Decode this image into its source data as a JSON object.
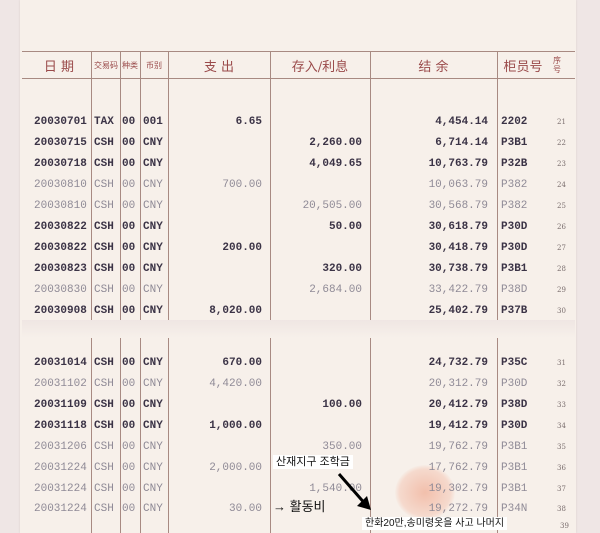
{
  "headers": {
    "date": "日 期",
    "code": "交易码",
    "type": "种类",
    "currency": "币别",
    "debit": "支 出",
    "credit": "存入/利息",
    "balance": "结 余",
    "teller": "柜员号",
    "seq": "序号"
  },
  "rows": [
    {
      "date": "20030701",
      "code": "TAX",
      "type": "00",
      "cur": "001",
      "debit": "6.65",
      "credit": "",
      "balance": "4,454.14",
      "teller": "2202",
      "seq": "21",
      "faded": false
    },
    {
      "date": "20030715",
      "code": "CSH",
      "type": "00",
      "cur": "CNY",
      "debit": "",
      "credit": "2,260.00",
      "balance": "6,714.14",
      "teller": "P3B1",
      "seq": "22",
      "faded": false
    },
    {
      "date": "20030718",
      "code": "CSH",
      "type": "00",
      "cur": "CNY",
      "debit": "",
      "credit": "4,049.65",
      "balance": "10,763.79",
      "teller": "P32B",
      "seq": "23",
      "faded": false
    },
    {
      "date": "20030810",
      "code": "CSH",
      "type": "00",
      "cur": "CNY",
      "debit": "700.00",
      "credit": "",
      "balance": "10,063.79",
      "teller": "P382",
      "seq": "24",
      "faded": true
    },
    {
      "date": "20030810",
      "code": "CSH",
      "type": "00",
      "cur": "CNY",
      "debit": "",
      "credit": "20,505.00",
      "balance": "30,568.79",
      "teller": "P382",
      "seq": "25",
      "faded": true
    },
    {
      "date": "20030822",
      "code": "CSH",
      "type": "00",
      "cur": "CNY",
      "debit": "",
      "credit": "50.00",
      "balance": "30,618.79",
      "teller": "P30D",
      "seq": "26",
      "faded": false
    },
    {
      "date": "20030822",
      "code": "CSH",
      "type": "00",
      "cur": "CNY",
      "debit": "200.00",
      "credit": "",
      "balance": "30,418.79",
      "teller": "P30D",
      "seq": "27",
      "faded": false
    },
    {
      "date": "20030823",
      "code": "CSH",
      "type": "00",
      "cur": "CNY",
      "debit": "",
      "credit": "320.00",
      "balance": "30,738.79",
      "teller": "P3B1",
      "seq": "28",
      "faded": false
    },
    {
      "date": "20030830",
      "code": "CSH",
      "type": "00",
      "cur": "CNY",
      "debit": "",
      "credit": "2,684.00",
      "balance": "33,422.79",
      "teller": "P38D",
      "seq": "29",
      "faded": true
    },
    {
      "date": "20030908",
      "code": "CSH",
      "type": "00",
      "cur": "CNY",
      "debit": "8,020.00",
      "credit": "",
      "balance": "25,402.79",
      "teller": "P37B",
      "seq": "30",
      "faded": false
    },
    {
      "date": "20031014",
      "code": "CSH",
      "type": "00",
      "cur": "CNY",
      "debit": "670.00",
      "credit": "",
      "balance": "24,732.79",
      "teller": "P35C",
      "seq": "31",
      "faded": false
    },
    {
      "date": "20031102",
      "code": "CSH",
      "type": "00",
      "cur": "CNY",
      "debit": "4,420.00",
      "credit": "",
      "balance": "20,312.79",
      "teller": "P30D",
      "seq": "32",
      "faded": true
    },
    {
      "date": "20031109",
      "code": "CSH",
      "type": "00",
      "cur": "CNY",
      "debit": "",
      "credit": "100.00",
      "balance": "20,412.79",
      "teller": "P38D",
      "seq": "33",
      "faded": false
    },
    {
      "date": "20031118",
      "code": "CSH",
      "type": "00",
      "cur": "CNY",
      "debit": "1,000.00",
      "credit": "",
      "balance": "19,412.79",
      "teller": "P30D",
      "seq": "34",
      "faded": false
    },
    {
      "date": "20031206",
      "code": "CSH",
      "type": "00",
      "cur": "CNY",
      "debit": "",
      "credit": "350.00",
      "balance": "19,762.79",
      "teller": "P3B1",
      "seq": "35",
      "faded": true
    },
    {
      "date": "20031224",
      "code": "CSH",
      "type": "00",
      "cur": "CNY",
      "debit": "2,000.00",
      "credit": "",
      "balance": "17,762.79",
      "teller": "P3B1",
      "seq": "36",
      "faded": true
    },
    {
      "date": "20031224",
      "code": "CSH",
      "type": "00",
      "cur": "CNY",
      "debit": "",
      "credit": "1,540.00",
      "balance": "19,302.79",
      "teller": "P3B1",
      "seq": "37",
      "faded": true
    },
    {
      "date": "20031224",
      "code": "CSH",
      "type": "00",
      "cur": "CNY",
      "debit": "30.00",
      "credit": "",
      "balance": "19,272.79",
      "teller": "P34N",
      "seq": "38",
      "faded": true
    }
  ],
  "last_seq": "39",
  "annotations": {
    "scholarship": "산재지구 조학금",
    "activity": "→ 활동비",
    "remainder": "한화20만,송미령옷을 사고 나머지"
  }
}
